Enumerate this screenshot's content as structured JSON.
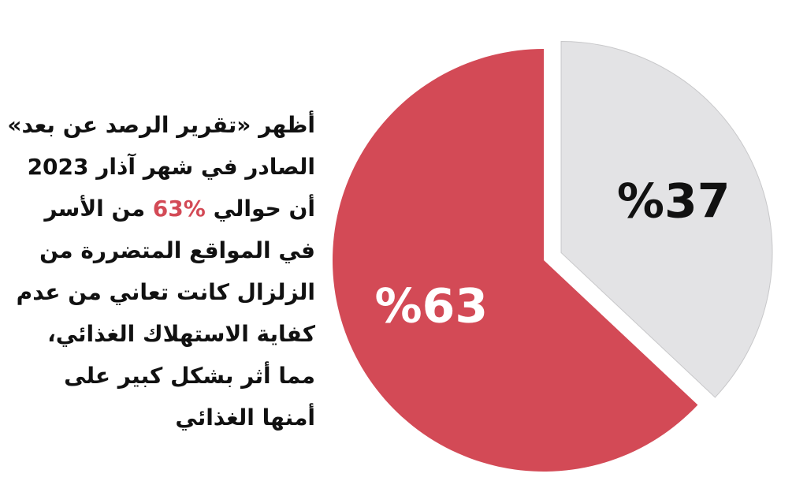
{
  "chart_data": {
    "type": "pie",
    "values": [
      37,
      63
    ],
    "value_labels": [
      "%37",
      "%63"
    ],
    "colors": [
      "#e3e3e5",
      "#d34a56"
    ],
    "label_colors": [
      "#111111",
      "#ffffff"
    ],
    "annotation": {
      "lines": [
        [
          "أظهر «تقرير الرصد عن بعد»"
        ],
        [
          "الصادر في شهر آذار 2023"
        ],
        [
          "أن حوالي ",
          {
            "text": "63%",
            "color": "#d34a56"
          },
          " من الأسر"
        ],
        [
          "في المواقع المتضررة من"
        ],
        [
          "الزلزال كانت تعاني من عدم"
        ],
        [
          "كفاية الاستهلاك الغذائي،"
        ],
        [
          "مما أثر بشكل كبير على"
        ],
        [
          "أمنها الغذائي"
        ]
      ]
    }
  }
}
